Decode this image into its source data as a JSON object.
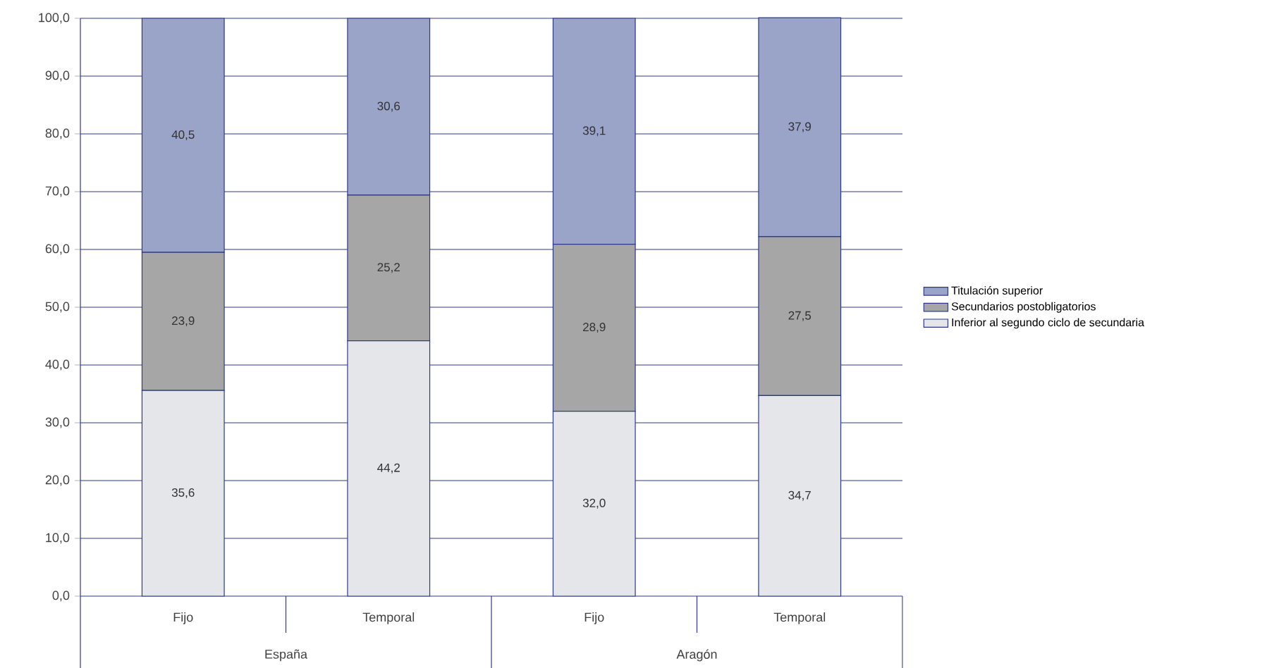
{
  "chart_data": {
    "type": "bar",
    "stacked": true,
    "categories": [
      "Fijo",
      "Temporal",
      "Fijo",
      "Temporal"
    ],
    "annotations": [
      "España",
      "Aragón"
    ],
    "series": [
      {
        "name": "Inferior al segundo ciclo de secundaria",
        "color": "#e4e6ea",
        "values": [
          35.6,
          44.2,
          32.0,
          34.7
        ],
        "value_labels": [
          "35,6",
          "44,2",
          "32,0",
          "34,7"
        ]
      },
      {
        "name": "Secundarios postobligatorios",
        "color": "#a6a6a6",
        "values": [
          23.9,
          25.2,
          28.9,
          27.5
        ],
        "value_labels": [
          "23,9",
          "25,2",
          "28,9",
          "27,5"
        ]
      },
      {
        "name": "Titulación superior",
        "color": "#9aa3c8",
        "values": [
          40.5,
          30.6,
          39.1,
          37.9
        ],
        "value_labels": [
          "40,5",
          "30,6",
          "39,1",
          "37,9"
        ]
      }
    ],
    "ylim": [
      0,
      100
    ],
    "yticks": [
      {
        "value": 0,
        "label": "0,0"
      },
      {
        "value": 10,
        "label": "10,0"
      },
      {
        "value": 20,
        "label": "20,0"
      },
      {
        "value": 30,
        "label": "30,0"
      },
      {
        "value": 40,
        "label": "40,0"
      },
      {
        "value": 50,
        "label": "50,0"
      },
      {
        "value": 60,
        "label": "60,0"
      },
      {
        "value": 70,
        "label": "70,0"
      },
      {
        "value": 80,
        "label": "80,0"
      },
      {
        "value": 90,
        "label": "90,0"
      },
      {
        "value": 100,
        "label": "100,0"
      }
    ],
    "grid": "y",
    "legend": "right"
  }
}
